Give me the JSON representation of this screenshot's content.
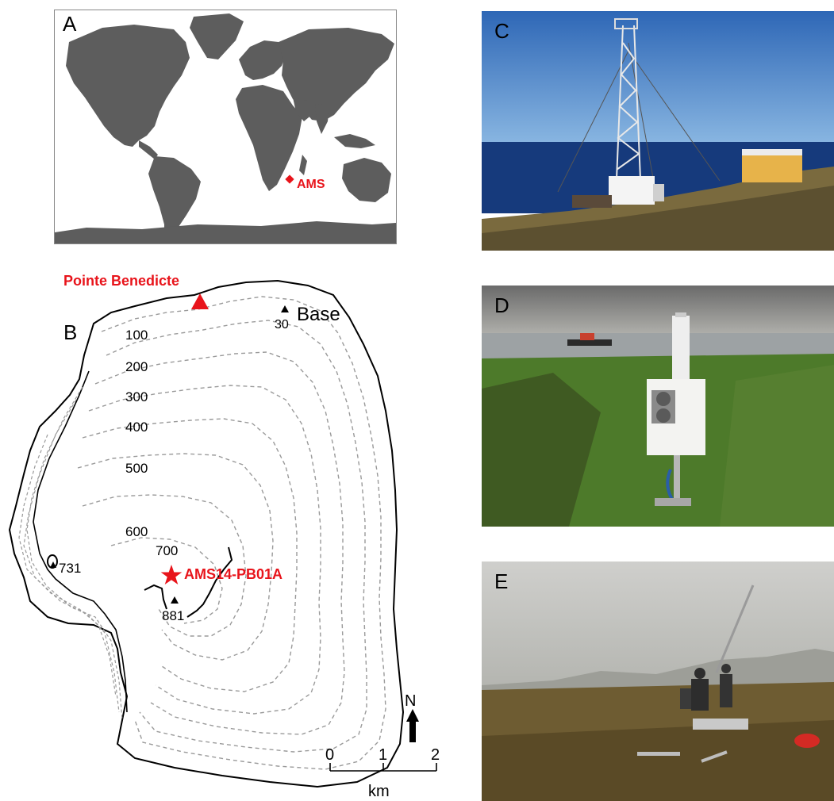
{
  "panels": {
    "A": {
      "letter": "A",
      "marker_label": "AMS"
    },
    "B": {
      "letter": "B",
      "site_label": "Pointe Benedicte",
      "base_label": "Base",
      "base_elevation": "30",
      "sample_label": "AMS14-PB01A",
      "summit_elevation": "881",
      "west_peak_elevation": "731",
      "contour_labels": [
        "100",
        "200",
        "300",
        "400",
        "500",
        "600",
        "700"
      ],
      "north_label": "N",
      "scale_ticks": [
        "0",
        "1",
        "2"
      ],
      "scale_unit": "km"
    },
    "C": {
      "letter": "C"
    },
    "D": {
      "letter": "D"
    },
    "E": {
      "letter": "E"
    }
  },
  "colors": {
    "land": "#5d5d5d",
    "marker": "#e8141b",
    "contour": "#9a9a9a"
  }
}
